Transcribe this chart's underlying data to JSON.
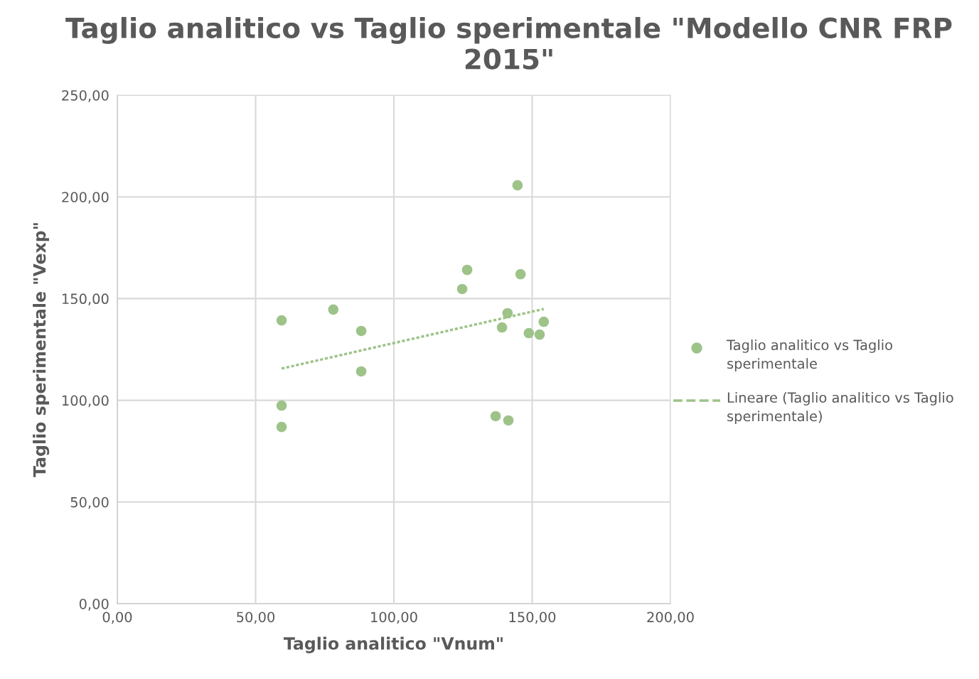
{
  "chart_data": {
    "type": "scatter",
    "title": "Taglio analitico vs Taglio sperimentale \"Modello CNR FRP 2015\"",
    "xlabel": "Taglio analitico \"Vnum\"",
    "ylabel": "Taglio sperimentale \"Vexp\"",
    "series": [
      {
        "name": "Taglio analitico vs Taglio sperimentale",
        "color": "#9dc389",
        "marker": "circle",
        "x": [
          59.4,
          59.4,
          59.4,
          78.1,
          88.2,
          88.2,
          124.7,
          126.5,
          136.8,
          139.1,
          141.1,
          141.4,
          144.7,
          145.8,
          148.8,
          152.7,
          154.2
        ],
        "values": [
          139.3,
          97.4,
          86.9,
          144.6,
          134.1,
          114.2,
          154.7,
          164.1,
          92.2,
          135.8,
          142.8,
          90.1,
          205.7,
          162.0,
          133.0,
          132.3,
          138.6
        ]
      },
      {
        "name": "Lineare (Taglio analitico vs Taglio sperimentale)",
        "type": "line",
        "color": "#9dc389",
        "line_style": "dotted",
        "marker": "none",
        "x": [
          59.4,
          154.2
        ],
        "values": [
          115.6,
          144.9
        ]
      }
    ],
    "xlim": [
      0,
      200
    ],
    "ylim": [
      0,
      250
    ],
    "xticks": [
      {
        "value": 0,
        "label": "0,00"
      },
      {
        "value": 50,
        "label": "50,00"
      },
      {
        "value": 100,
        "label": "100,00"
      },
      {
        "value": 150,
        "label": "150,00"
      },
      {
        "value": 200,
        "label": "200,00"
      }
    ],
    "yticks": [
      {
        "value": 0,
        "label": "0,00"
      },
      {
        "value": 50,
        "label": "50,00"
      },
      {
        "value": 100,
        "label": "100,00"
      },
      {
        "value": 150,
        "label": "150,00"
      },
      {
        "value": 200,
        "label": "200,00"
      },
      {
        "value": 250,
        "label": "250,00"
      }
    ],
    "grid": true,
    "legend": "right"
  }
}
